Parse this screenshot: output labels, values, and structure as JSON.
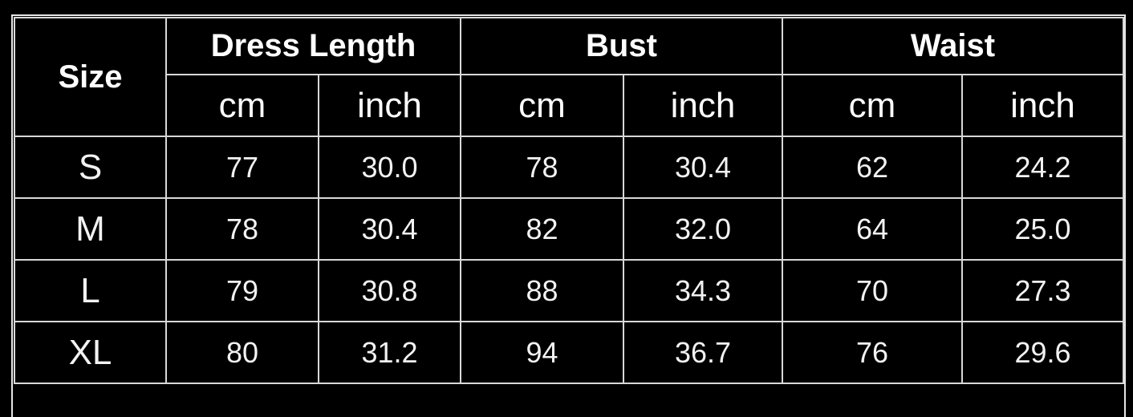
{
  "table": {
    "size_header": "Size",
    "groups": [
      "Dress Length",
      "Bust",
      "Waist"
    ],
    "units": [
      "cm",
      "inch",
      "cm",
      "inch",
      "cm",
      "inch"
    ],
    "rows": [
      {
        "size": "S",
        "values": [
          "77",
          "30.0",
          "78",
          "30.4",
          "62",
          "24.2"
        ]
      },
      {
        "size": "M",
        "values": [
          "78",
          "30.4",
          "82",
          "32.0",
          "64",
          "25.0"
        ]
      },
      {
        "size": "L",
        "values": [
          "79",
          "30.8",
          "88",
          "34.3",
          "70",
          "27.3"
        ]
      },
      {
        "size": "XL",
        "values": [
          "80",
          "31.2",
          "94",
          "36.7",
          "76",
          "29.6"
        ]
      }
    ]
  }
}
